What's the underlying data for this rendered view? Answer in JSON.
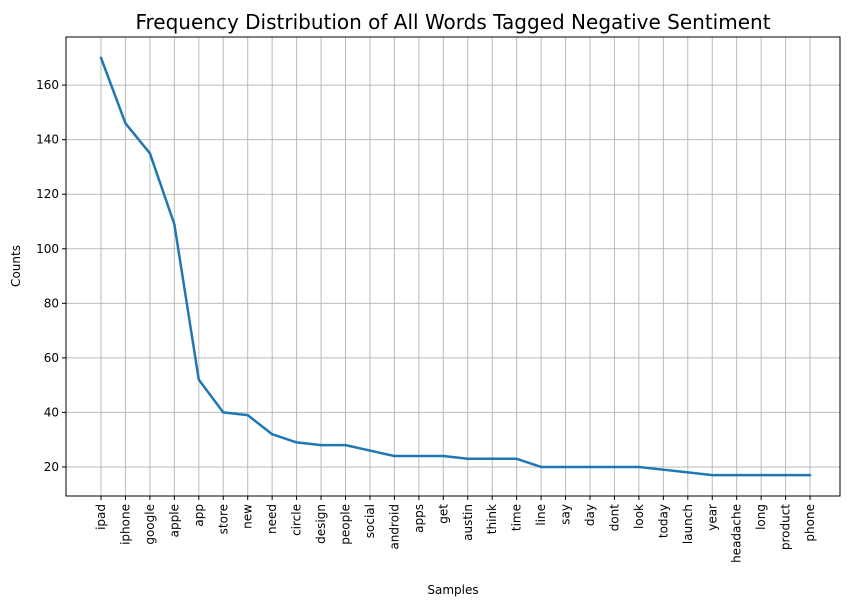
{
  "chart_data": {
    "type": "line",
    "title": "Frequency Distribution of All Words Tagged Negative Sentiment",
    "xlabel": "Samples",
    "ylabel": "Counts",
    "categories": [
      "ipad",
      "iphone",
      "google",
      "apple",
      "app",
      "store",
      "new",
      "need",
      "circle",
      "design",
      "people",
      "social",
      "android",
      "apps",
      "get",
      "austin",
      "think",
      "time",
      "line",
      "say",
      "day",
      "dont",
      "look",
      "today",
      "launch",
      "year",
      "headache",
      "long",
      "product",
      "phone"
    ],
    "values": [
      170,
      146,
      135,
      109,
      52,
      40,
      39,
      32,
      29,
      28,
      28,
      26,
      24,
      24,
      24,
      23,
      23,
      23,
      20,
      20,
      20,
      20,
      20,
      19,
      18,
      17,
      17,
      17,
      17,
      17
    ],
    "yticks": [
      20,
      40,
      60,
      80,
      100,
      120,
      140,
      160
    ],
    "ylim": [
      9.35,
      177.65
    ],
    "grid": true,
    "line_color": "#1f77b4",
    "grid_color": "#b0b0b0"
  }
}
